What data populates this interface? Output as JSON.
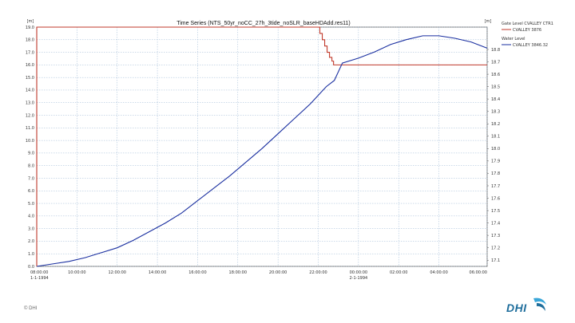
{
  "colors": {
    "gate_series": "#c0392b",
    "water_series": "#1a2fa0",
    "grid": "#9bb7d4",
    "axes": "#555555",
    "logo": "#1f6e9c"
  },
  "footer": {
    "copyright": "© DHI",
    "logo_text": "DHI"
  },
  "chart_data": {
    "type": "line",
    "title": "Time Series (NTS_50yr_noCC_27h_3tide_noSLR_baseHDAdd.res11)",
    "left_axis": {
      "unit": "[m]",
      "range": [
        0,
        19
      ],
      "ticks": [
        "0.0",
        "1.0",
        "2.0",
        "3.0",
        "4.0",
        "5.0",
        "6.0",
        "7.0",
        "8.0",
        "9.0",
        "10.0",
        "11.0",
        "12.0",
        "13.0",
        "14.0",
        "15.0",
        "16.0",
        "17.0",
        "18.0",
        "19.0"
      ]
    },
    "right_axis": {
      "unit": "[m]",
      "range": [
        17.05,
        18.98
      ],
      "ticks": [
        "17.1",
        "17.2",
        "17.3",
        "17.4",
        "17.5",
        "17.6",
        "17.7",
        "17.8",
        "17.9",
        "18.0",
        "18.1",
        "18.2",
        "18.3",
        "18.4",
        "18.5",
        "18.6",
        "18.7",
        "18.8"
      ]
    },
    "x_axis": {
      "range_hours": [
        0,
        28
      ],
      "ticks": [
        {
          "h": 0,
          "label": "08:00:00",
          "date": "1-1-1994"
        },
        {
          "h": 2.5,
          "label": "10:00:00"
        },
        {
          "h": 5,
          "label": "12:00:00"
        },
        {
          "h": 7.5,
          "label": "14:00:00"
        },
        {
          "h": 10,
          "label": "16:00:00"
        },
        {
          "h": 12.5,
          "label": "18:00:00"
        },
        {
          "h": 15,
          "label": "20:00:00"
        },
        {
          "h": 17.5,
          "label": "22:00:00"
        },
        {
          "h": 20,
          "label": "00:00:00",
          "date": "2-1-1994"
        },
        {
          "h": 22.5,
          "label": "02:00:00"
        },
        {
          "h": 25,
          "label": "04:00:00"
        },
        {
          "h": 28,
          "label": "06:00:00"
        }
      ]
    },
    "grid": true,
    "legend_position": "right",
    "series": [
      {
        "name": "Gate Level CVALLEY CTR1",
        "subname": "CVALLEY 3876",
        "axis": "left",
        "color": "#c0392b",
        "x": [
          0,
          0,
          17.6,
          17.6,
          17.75,
          17.75,
          17.9,
          17.9,
          18.05,
          18.05,
          18.2,
          18.2,
          18.35,
          18.35,
          18.45,
          18.45,
          28
        ],
        "y": [
          0,
          19.0,
          19.0,
          18.5,
          18.5,
          18.0,
          18.0,
          17.5,
          17.5,
          17.0,
          17.0,
          16.6,
          16.6,
          16.3,
          16.3,
          16.0,
          16.0
        ]
      },
      {
        "name": "Water Level",
        "subname": "CVALLEY 3846.32",
        "axis": "right",
        "color": "#1a2fa0",
        "x": [
          0,
          1,
          2,
          3,
          4,
          5,
          6,
          7,
          8,
          9,
          10,
          11,
          12,
          13,
          14,
          15,
          16,
          17,
          18,
          18.5,
          19,
          20,
          21,
          22,
          23,
          24,
          25,
          26,
          27,
          28
        ],
        "y": [
          17.05,
          17.07,
          17.09,
          17.12,
          17.16,
          17.2,
          17.26,
          17.33,
          17.4,
          17.48,
          17.58,
          17.68,
          17.78,
          17.89,
          18.0,
          18.12,
          18.24,
          18.36,
          18.5,
          18.55,
          18.69,
          18.73,
          18.78,
          18.84,
          18.88,
          18.91,
          18.91,
          18.89,
          18.86,
          18.81
        ]
      }
    ]
  }
}
